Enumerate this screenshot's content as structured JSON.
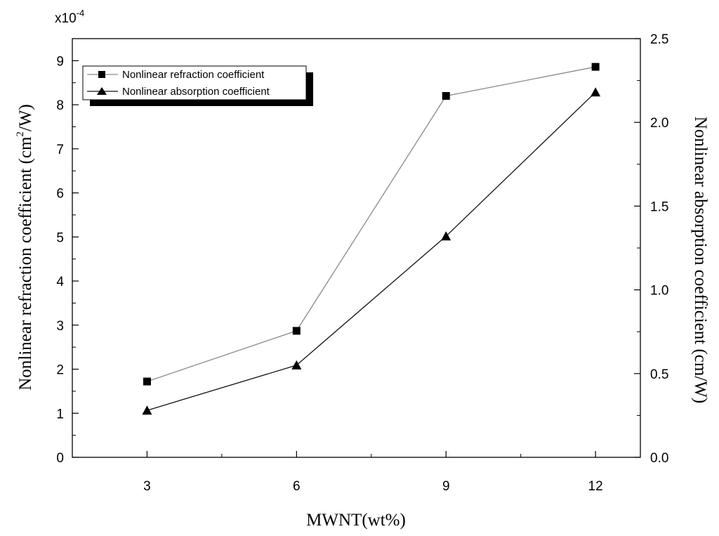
{
  "chart_data": {
    "type": "line",
    "x": [
      3,
      6,
      9,
      12
    ],
    "x_ticks": [
      "3",
      "6",
      "9",
      "12"
    ],
    "xlabel": "MWNT(wt%)",
    "xlim": [
      1.5,
      12.9
    ],
    "ylabel_left": {
      "pre": "Nonlinear refraction coefficient (cm",
      "sup": "2",
      "post": "/W)"
    },
    "ylabel_right": "Nonlinear absorption coefficient (cm/W)",
    "y_left_multiplier": {
      "base": "x10",
      "exp": "-4"
    },
    "ylim_left": [
      0,
      9.5
    ],
    "ylim_right": [
      0,
      2.5
    ],
    "y_left_ticks": [
      "0",
      "1",
      "2",
      "3",
      "4",
      "5",
      "6",
      "7",
      "8",
      "9"
    ],
    "y_right_ticks": [
      "0.0",
      "0.5",
      "1.0",
      "1.5",
      "2.0",
      "2.5"
    ],
    "grid": false,
    "legend_position": "top-left",
    "series": [
      {
        "name": "Nonlinear refraction coefficient",
        "axis": "left",
        "marker": "square",
        "line_color": "#8a8a8a",
        "values": [
          1.72,
          2.87,
          8.2,
          8.86
        ]
      },
      {
        "name": "Nonlinear absorption coefficient",
        "axis": "right",
        "marker": "triangle",
        "line_color": "#111111",
        "values": [
          0.28,
          0.55,
          1.32,
          2.18
        ]
      }
    ]
  }
}
